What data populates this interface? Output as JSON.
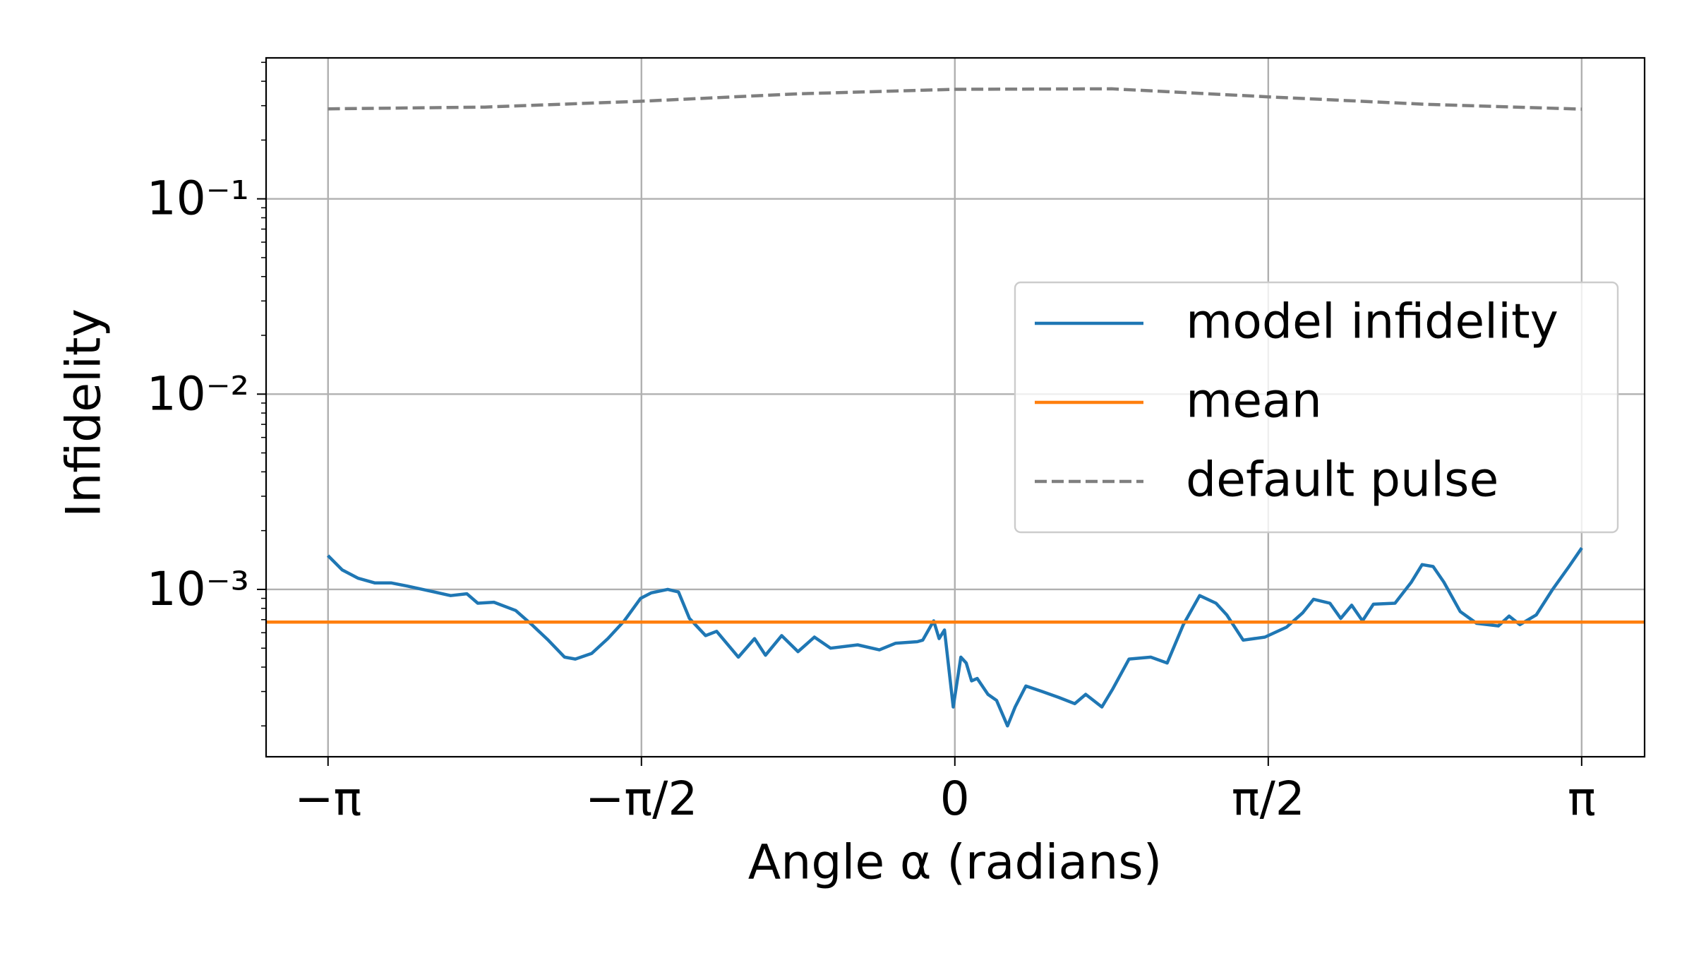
{
  "chart_data": {
    "type": "line",
    "xlabel": "Angle α (radians)",
    "ylabel": "Infidelity",
    "yscale": "log",
    "grid": true,
    "legend": "center right",
    "xlim": [
      -3.452,
      3.457
    ],
    "ylim": [
      0.000139,
      0.527
    ],
    "xticks": [
      {
        "value": -3.14159,
        "label": "−π"
      },
      {
        "value": -1.5708,
        "label": "−π/2"
      },
      0,
      {
        "value": 1.5708,
        "label": "π/2"
      },
      {
        "value": 3.14159,
        "label": "π"
      }
    ],
    "yticks": [
      {
        "value": 0.001,
        "label": "10⁻³"
      },
      {
        "value": 0.01,
        "label": "10⁻²"
      },
      {
        "value": 0.1,
        "label": "10⁻¹"
      }
    ],
    "yminorticks": [
      0.0002,
      0.0003,
      0.0004,
      0.0005,
      0.0006,
      0.0007,
      0.0008,
      0.0009,
      0.002,
      0.003,
      0.004,
      0.005,
      0.006,
      0.007,
      0.008,
      0.009,
      0.02,
      0.03,
      0.04,
      0.05,
      0.06,
      0.07,
      0.08,
      0.09,
      0.2,
      0.3,
      0.4,
      0.5
    ],
    "series": [
      {
        "name": "model infidelity",
        "color": "#1f77b4",
        "x": [
          -3.142,
          -3.071,
          -2.99,
          -2.908,
          -2.826,
          -2.745,
          -2.609,
          -2.527,
          -2.446,
          -2.391,
          -2.31,
          -2.201,
          -2.12,
          -2.038,
          -1.956,
          -1.902,
          -1.82,
          -1.739,
          -1.657,
          -1.575,
          -1.521,
          -1.439,
          -1.385,
          -1.33,
          -1.249,
          -1.194,
          -1.085,
          -1.004,
          -0.949,
          -0.868,
          -0.786,
          -0.704,
          -0.623,
          -0.487,
          -0.378,
          -0.297,
          -0.188,
          -0.161,
          -0.106,
          -0.079,
          -0.052,
          -0.008,
          0.03,
          0.057,
          0.084,
          0.112,
          0.166,
          0.209,
          0.264,
          0.302,
          0.356,
          0.438,
          0.52,
          0.601,
          0.656,
          0.737,
          0.792,
          0.873,
          0.982,
          1.064,
          1.145,
          1.227,
          1.309,
          1.363,
          1.445,
          1.554,
          1.662,
          1.744,
          1.798,
          1.88,
          1.934,
          1.989,
          2.043,
          2.098,
          2.206,
          2.288,
          2.342,
          2.397,
          2.451,
          2.533,
          2.615,
          2.724,
          2.778,
          2.832,
          2.914,
          2.996,
          3.078,
          3.142
        ],
        "values": [
          0.00149,
          0.00126,
          0.00114,
          0.00108,
          0.00108,
          0.00104,
          0.00097,
          0.00093,
          0.00095,
          0.00085,
          0.00086,
          0.00078,
          0.00066,
          0.00055,
          0.00045,
          0.00044,
          0.00047,
          0.00056,
          0.00069,
          0.0009,
          0.00096,
          0.001,
          0.00097,
          0.00071,
          0.00058,
          0.00061,
          0.00045,
          0.00056,
          0.00046,
          0.00058,
          0.00048,
          0.00057,
          0.0005,
          0.00052,
          0.00049,
          0.00053,
          0.00054,
          0.00055,
          0.00069,
          0.00056,
          0.00062,
          0.00025,
          0.00045,
          0.00042,
          0.00034,
          0.00035,
          0.00029,
          0.00027,
          0.0002,
          0.00025,
          0.00032,
          0.0003,
          0.00028,
          0.00026,
          0.00029,
          0.00025,
          0.00031,
          0.00044,
          0.00045,
          0.00042,
          0.00066,
          0.00093,
          0.00085,
          0.00074,
          0.00055,
          0.00057,
          0.00064,
          0.00076,
          0.00089,
          0.00085,
          0.00071,
          0.00083,
          0.00069,
          0.00084,
          0.00085,
          0.00109,
          0.00134,
          0.00131,
          0.00109,
          0.00077,
          0.00067,
          0.00065,
          0.00073,
          0.00066,
          0.00074,
          0.001,
          0.00131,
          0.00163
        ]
      },
      {
        "name": "mean",
        "color": "#ff7f0e",
        "hline": true,
        "value": 0.00068
      },
      {
        "name": "default pulse",
        "color": "#7f7f7f",
        "dashed": true,
        "x": [
          -3.142,
          -2.356,
          -1.571,
          -0.785,
          0,
          0.785,
          1.571,
          2.356,
          3.142
        ],
        "values": [
          0.289,
          0.295,
          0.316,
          0.345,
          0.364,
          0.366,
          0.333,
          0.305,
          0.288
        ]
      }
    ]
  }
}
